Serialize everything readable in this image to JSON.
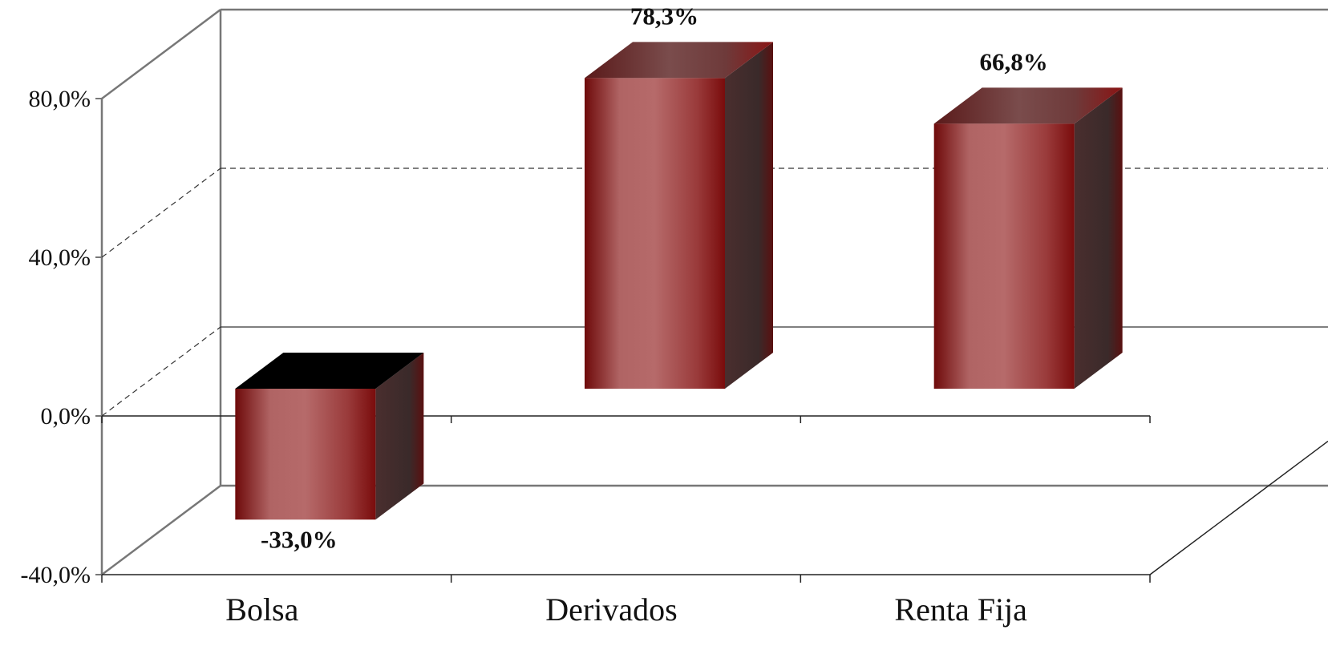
{
  "chart_data": {
    "type": "bar",
    "style": "3d-column",
    "categories": [
      "Bolsa",
      "Derivados",
      "Renta Fija"
    ],
    "values": [
      -33.0,
      78.3,
      66.8
    ],
    "data_labels": [
      "-33,0%",
      "78,3%",
      "66,8%"
    ],
    "y_ticks": [
      "-40,0%",
      "0,0%",
      "40,0%",
      "80,0%"
    ],
    "ylim": [
      -40,
      80
    ],
    "grid": true,
    "legend": "none",
    "colors": {
      "bar_front": "#8b1a1a",
      "bar_highlight": "#b86a6a",
      "bar_side": "#3e2a2a",
      "bar_top": "#7a4a4a",
      "negative_top": "#000000",
      "axis": "#777777",
      "gridline": "#333333"
    }
  }
}
